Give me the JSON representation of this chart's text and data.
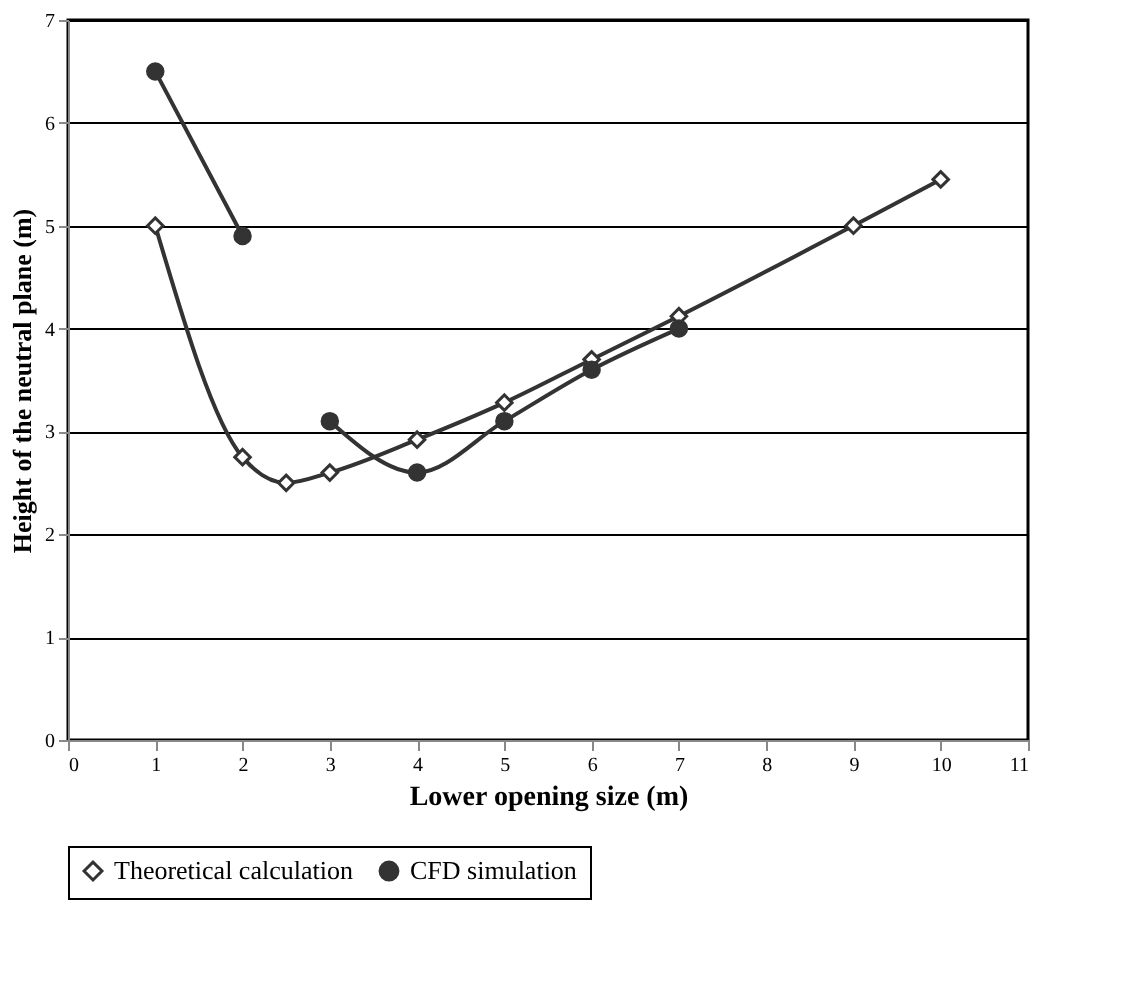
{
  "chart_data": {
    "type": "line",
    "xlabel": "Lower opening size (m)",
    "ylabel": "Height of the neutral plane (m)",
    "xlim": [
      0,
      11
    ],
    "xticks": [
      0,
      1,
      2,
      3,
      4,
      5,
      6,
      7,
      8,
      9,
      10,
      11
    ],
    "ylim": [
      0,
      7
    ],
    "yticks": [
      0,
      1,
      2,
      3,
      4,
      5,
      6,
      7
    ],
    "grid": "y",
    "legend": "bottom",
    "line_style": "solid",
    "series": [
      {
        "name": "Theoretical calculation",
        "color": "#333333",
        "marker": "diamond",
        "x": [
          1,
          2,
          2.5,
          3,
          4,
          5,
          6,
          7,
          9,
          10
        ],
        "values": [
          5.0,
          2.75,
          2.5,
          2.6,
          2.92,
          3.28,
          3.7,
          4.12,
          5.0,
          5.45
        ]
      },
      {
        "name": "CFD simulation",
        "color": "#333333",
        "marker": "circle",
        "x": [
          1,
          2,
          2.5,
          3,
          4,
          5,
          6,
          7
        ],
        "values": [
          6.5,
          4.9,
          null,
          3.1,
          2.6,
          3.1,
          3.6,
          4.0
        ]
      }
    ]
  }
}
